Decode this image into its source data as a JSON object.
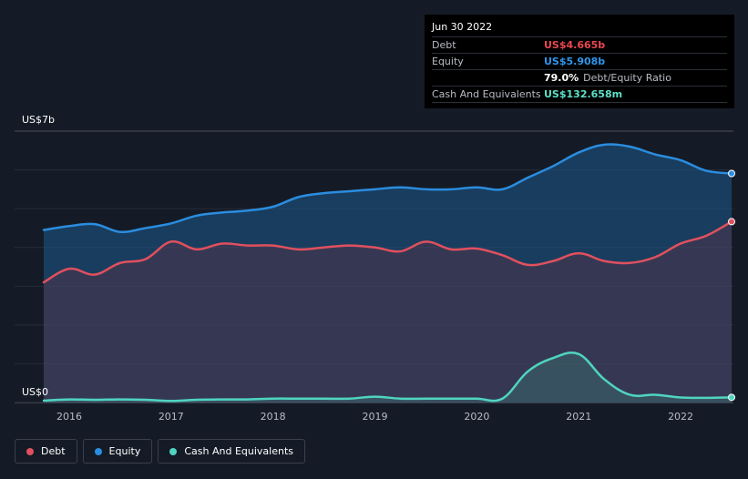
{
  "chart_data": {
    "type": "area",
    "title": "",
    "xlabel": "",
    "ylabel": "",
    "y_axis_labels": {
      "top": "US$7b",
      "bottom": "US$0"
    },
    "ylim": [
      0,
      7
    ],
    "xlim": [
      2015.75,
      2022.5
    ],
    "x_ticks": [
      2016,
      2017,
      2018,
      2019,
      2020,
      2021,
      2022
    ],
    "x_tick_labels": [
      "2016",
      "2017",
      "2018",
      "2019",
      "2020",
      "2021",
      "2022"
    ],
    "series": [
      {
        "name": "Equity",
        "color": "#2a8de0",
        "x": [
          2015.75,
          2016.0,
          2016.25,
          2016.5,
          2016.75,
          2017.0,
          2017.25,
          2017.5,
          2017.75,
          2018.0,
          2018.25,
          2018.5,
          2018.75,
          2019.0,
          2019.25,
          2019.5,
          2019.75,
          2020.0,
          2020.25,
          2020.5,
          2020.75,
          2021.0,
          2021.25,
          2021.5,
          2021.75,
          2022.0,
          2022.25,
          2022.5
        ],
        "values": [
          4.45,
          4.55,
          4.6,
          4.4,
          4.5,
          4.62,
          4.82,
          4.9,
          4.95,
          5.05,
          5.3,
          5.4,
          5.45,
          5.5,
          5.55,
          5.5,
          5.5,
          5.55,
          5.5,
          5.8,
          6.1,
          6.45,
          6.65,
          6.6,
          6.4,
          6.25,
          5.98,
          5.908
        ]
      },
      {
        "name": "Debt",
        "color": "#e0505e",
        "x": [
          2015.75,
          2016.0,
          2016.25,
          2016.5,
          2016.75,
          2017.0,
          2017.25,
          2017.5,
          2017.75,
          2018.0,
          2018.25,
          2018.5,
          2018.75,
          2019.0,
          2019.25,
          2019.5,
          2019.75,
          2020.0,
          2020.25,
          2020.5,
          2020.75,
          2021.0,
          2021.25,
          2021.5,
          2021.75,
          2022.0,
          2022.25,
          2022.5
        ],
        "values": [
          3.1,
          3.45,
          3.3,
          3.6,
          3.7,
          4.15,
          3.95,
          4.1,
          4.05,
          4.05,
          3.95,
          4.0,
          4.05,
          4.0,
          3.9,
          4.15,
          3.95,
          3.97,
          3.8,
          3.55,
          3.65,
          3.85,
          3.65,
          3.6,
          3.75,
          4.1,
          4.3,
          4.665
        ]
      },
      {
        "name": "Cash And Equivalents",
        "color": "#4fd4c0",
        "x": [
          2015.75,
          2016.0,
          2016.25,
          2016.5,
          2016.75,
          2017.0,
          2017.25,
          2017.5,
          2017.75,
          2018.0,
          2018.25,
          2018.5,
          2018.75,
          2019.0,
          2019.25,
          2019.5,
          2019.75,
          2020.0,
          2020.25,
          2020.5,
          2020.75,
          2021.0,
          2021.25,
          2021.5,
          2021.75,
          2022.0,
          2022.25,
          2022.5
        ],
        "values": [
          0.05,
          0.08,
          0.07,
          0.08,
          0.07,
          0.04,
          0.07,
          0.08,
          0.08,
          0.1,
          0.1,
          0.1,
          0.1,
          0.15,
          0.1,
          0.1,
          0.1,
          0.1,
          0.1,
          0.8,
          1.15,
          1.25,
          0.6,
          0.2,
          0.2,
          0.13,
          0.12,
          0.132658
        ]
      }
    ]
  },
  "tooltip": {
    "date": "Jun 30 2022",
    "rows": [
      {
        "label": "Debt",
        "value": "US$4.665b",
        "color": "#e8474f",
        "sub": ""
      },
      {
        "label": "Equity",
        "value": "US$5.908b",
        "color": "#2e96ec",
        "sub": ""
      },
      {
        "label": "",
        "value": "79.0%",
        "color": "#ffffff",
        "sub": "Debt/Equity Ratio"
      },
      {
        "label": "Cash And Equivalents",
        "value": "US$132.658m",
        "color": "#5ee0c8",
        "sub": ""
      }
    ]
  },
  "legend": [
    {
      "label": "Debt",
      "color": "#e0505e"
    },
    {
      "label": "Equity",
      "color": "#2a8de0"
    },
    {
      "label": "Cash And Equivalents",
      "color": "#4fd4c0"
    }
  ]
}
